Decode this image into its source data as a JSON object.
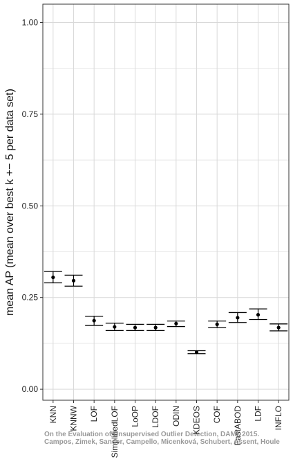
{
  "chart_data": {
    "type": "errorbar",
    "ylabel": "mean AP (mean over best k +− 5 per data set)",
    "xlabel": "",
    "ylim": [
      -0.03,
      1.05
    ],
    "yticks": [
      0.0,
      0.25,
      0.5,
      0.75,
      1.0
    ],
    "ytick_labels": [
      "0.00",
      "0.25",
      "0.50",
      "0.75",
      "1.00"
    ],
    "grid": true,
    "categories": [
      "KNN",
      "KNNW",
      "LOF",
      "SimplifiedLOF",
      "LoOP",
      "LDOF",
      "ODIN",
      "KDEOS",
      "COF",
      "FastABOD",
      "LDF",
      "INFLO"
    ],
    "mean": [
      0.305,
      0.296,
      0.187,
      0.17,
      0.168,
      0.168,
      0.179,
      0.101,
      0.177,
      0.195,
      0.203,
      0.168
    ],
    "lower": [
      0.29,
      0.281,
      0.174,
      0.16,
      0.16,
      0.16,
      0.171,
      0.097,
      0.168,
      0.182,
      0.19,
      0.159
    ],
    "upper": [
      0.321,
      0.311,
      0.199,
      0.18,
      0.177,
      0.177,
      0.186,
      0.105,
      0.186,
      0.209,
      0.219,
      0.178
    ],
    "colors": {
      "marks": "#000000",
      "grid": "#d9d9d9",
      "frame": "#333333"
    }
  },
  "watermark": {
    "line1": "On the Evaluation of Unsupervised Outlier Detection, DAMI, 2015.",
    "line2": "Campos, Zimek, Sander, Campello, Micenková, Schubert, Assent, Houle"
  }
}
